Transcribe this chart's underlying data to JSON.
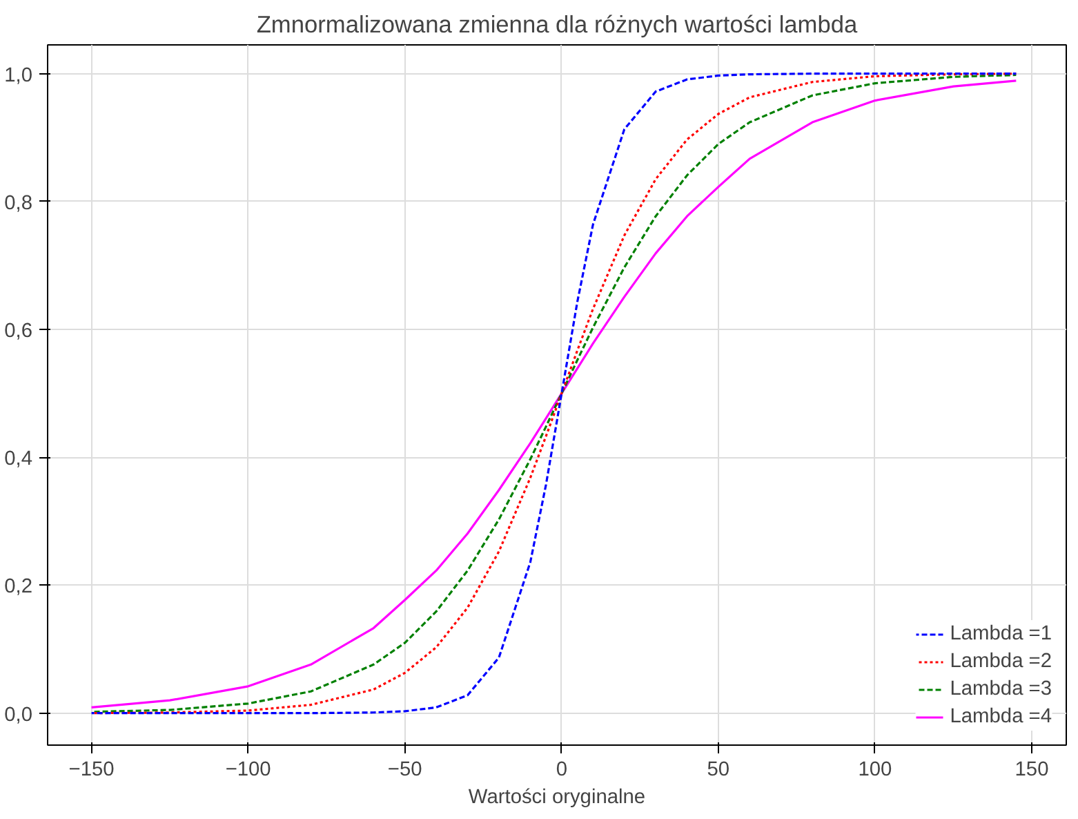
{
  "chart_data": {
    "type": "line",
    "title": "Zmnormalizowana zmienna dla różnych wartości lambda",
    "xlabel": "Wartości oryginalne",
    "x": [
      -150,
      -125,
      -100,
      -80,
      -60,
      -50,
      -40,
      -30,
      -20,
      -10,
      -5,
      0,
      5,
      10,
      20,
      30,
      40,
      50,
      60,
      80,
      100,
      125,
      145
    ],
    "series": [
      {
        "name": "Lambda =1",
        "color": "#0000ff",
        "line_style": "dashed",
        "values": [
          0,
          0,
          0,
          0,
          0.001,
          0.003,
          0.009,
          0.028,
          0.087,
          0.236,
          0.357,
          0.5,
          0.643,
          0.764,
          0.913,
          0.972,
          0.991,
          0.997,
          0.999,
          1,
          1,
          1,
          1
        ]
      },
      {
        "name": "Lambda =2",
        "color": "#ff0000",
        "line_style": "dotted",
        "values": [
          0,
          0.001,
          0.004,
          0.013,
          0.037,
          0.063,
          0.103,
          0.165,
          0.253,
          0.368,
          0.433,
          0.5,
          0.567,
          0.632,
          0.747,
          0.835,
          0.897,
          0.937,
          0.963,
          0.987,
          0.996,
          0.999,
          1
        ]
      },
      {
        "name": "Lambda =3",
        "color": "#008000",
        "line_style": "dashed",
        "values": [
          0.002,
          0.005,
          0.015,
          0.034,
          0.076,
          0.11,
          0.159,
          0.223,
          0.303,
          0.397,
          0.448,
          0.5,
          0.552,
          0.603,
          0.697,
          0.777,
          0.841,
          0.89,
          0.924,
          0.966,
          0.985,
          0.995,
          0.998
        ]
      },
      {
        "name": "Lambda =4",
        "color": "#ff00ff",
        "line_style": "solid",
        "values": [
          0.009,
          0.02,
          0.042,
          0.076,
          0.133,
          0.177,
          0.223,
          0.281,
          0.349,
          0.422,
          0.461,
          0.5,
          0.539,
          0.578,
          0.651,
          0.719,
          0.777,
          0.823,
          0.867,
          0.924,
          0.958,
          0.98,
          0.989
        ]
      }
    ],
    "xlim": [
      -164,
      161
    ],
    "ylim": [
      -0.05,
      1.045
    ],
    "xticks": [
      -150,
      -100,
      -50,
      0,
      50,
      100,
      150
    ],
    "yticks": [
      {
        "value": 0,
        "label": "0,0"
      },
      {
        "value": 0.2,
        "label": "0,2"
      },
      {
        "value": 0.4,
        "label": "0,4"
      },
      {
        "value": 0.6,
        "label": "0,6"
      },
      {
        "value": 0.8,
        "label": "0,8"
      },
      {
        "value": 1,
        "label": "1,0"
      }
    ],
    "grid": true,
    "legend": "bottom right"
  }
}
